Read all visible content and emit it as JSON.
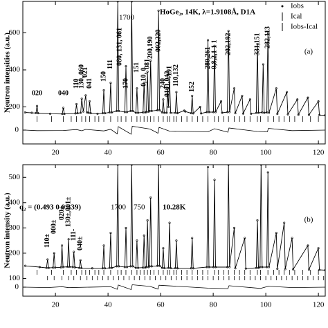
{
  "chart_data": [
    {
      "type": "line",
      "title": "HoGe₃, 14K, λ=1.9108Å, D1A",
      "ylabel": "Neutron intensities (a.u.)",
      "xlim": [
        7.6,
        122.6
      ],
      "xticks": [
        20,
        40,
        60,
        80,
        100,
        120
      ],
      "ylim": [
        0,
        770
      ],
      "yticks": [
        200,
        400,
        600
      ],
      "legend": [
        "Iobs",
        "Ical",
        "Iobs-Ical"
      ],
      "series": [
        {
          "name": "Iobs",
          "color": "#000000",
          "x": [
            8.5,
            11,
            12.6,
            13,
            13.4,
            18,
            22.6,
            23,
            23.4,
            27.6,
            28,
            28.4,
            29.6,
            30,
            30.6,
            31.5,
            32,
            32.6,
            33,
            33.4,
            36,
            38,
            38.4,
            38.8,
            40.6,
            41,
            41.4,
            43.3,
            43.7,
            44.1,
            46.4,
            46.8,
            47.2,
            48.6,
            49,
            49.4,
            50.6,
            51,
            51.4,
            53.3,
            53.7,
            54.1,
            54.6,
            55,
            55.4,
            55.8,
            56.2,
            56.6,
            58.8,
            59.2,
            59.6,
            60.6,
            61,
            61.4,
            62.3,
            62.6,
            63,
            63.4,
            63.8,
            65.6,
            66,
            66.4,
            69,
            69.4,
            71.6,
            72,
            72.4,
            75,
            75.4,
            77.6,
            78,
            78.4,
            80.1,
            80.5,
            80.9,
            83,
            83.4,
            85.4,
            85.8,
            86.2,
            88,
            88.4,
            91,
            91.4,
            94,
            94.4,
            96.4,
            96.8,
            97.2,
            98.6,
            99,
            99.4,
            100.4,
            100.8,
            101.2,
            104,
            104.4,
            108,
            108.4,
            112,
            112.4,
            116,
            116.4,
            120,
            120.4,
            122.6
          ],
          "values": [
            170,
            168,
            167,
            205,
            166,
            163,
            162,
            195,
            162,
            165,
            215,
            166,
            168,
            245,
            175,
            262,
            170,
            168,
            230,
            166,
            163,
            166,
            290,
            166,
            170,
            330,
            170,
            178,
            770,
            178,
            172,
            420,
            172,
            178,
            770,
            178,
            168,
            300,
            168,
            170,
            330,
            170,
            172,
            390,
            174,
            178,
            450,
            178,
            182,
            720,
            182,
            170,
            240,
            168,
            168,
            300,
            200,
            360,
            168,
            168,
            280,
            166,
            180,
            175,
            166,
            260,
            165,
            200,
            165,
            172,
            560,
            172,
            172,
            530,
            172,
            230,
            168,
            172,
            610,
            172,
            300,
            166,
            260,
            164,
            240,
            163,
            168,
            540,
            168,
            170,
            430,
            168,
            170,
            600,
            168,
            300,
            162,
            280,
            160,
            240,
            158,
            250,
            157,
            230,
            156,
            155
          ]
        }
      ],
      "residual": {
        "ylim": [
          -100,
          100
        ],
        "yticks": [
          0
        ],
        "x": [
          8.5,
          13,
          23,
          28,
          30,
          31.5,
          38.4,
          41,
          43.5,
          43.9,
          48.8,
          49.2,
          56,
          59,
          59.4,
          63.4,
          78,
          80.5,
          85.6,
          86,
          96.8,
          100.6,
          101,
          110,
          122.6
        ],
        "values": [
          0,
          -8,
          -6,
          8,
          -10,
          10,
          -12,
          12,
          -55,
          50,
          -60,
          55,
          15,
          -45,
          40,
          -15,
          -25,
          20,
          -30,
          30,
          -20,
          -25,
          25,
          -8,
          0
        ]
      },
      "reflections": [
        [
          13,
          18.5,
          23,
          26,
          28,
          30,
          31.5,
          33,
          35,
          36.5,
          38.4,
          41,
          43.7,
          45,
          46.8,
          49,
          51,
          52.2,
          53.7,
          55,
          56.2,
          57.5,
          59.2,
          61,
          62.6,
          63.4,
          65,
          66,
          68,
          70,
          72,
          74,
          76,
          78,
          80.5,
          82,
          84,
          85.8,
          88,
          90,
          92,
          94,
          96.8,
          98,
          100.8,
          103,
          105,
          107,
          109,
          111,
          114,
          117,
          120
        ]
      ],
      "annotations": [
        {
          "text": "020",
          "x": 13
        },
        {
          "text": "040",
          "x": 23
        },
        {
          "text": "110",
          "x": 28
        },
        {
          "text": "130, 060",
          "x": 30
        },
        {
          "text": "021",
          "x": 31.5
        },
        {
          "text": "041",
          "x": 33
        },
        {
          "text": "150",
          "x": 38.4
        },
        {
          "text": "111",
          "x": 41
        },
        {
          "text": "080, 131, 061",
          "x": 44.5
        },
        {
          "text": "170",
          "x": 46.8
        },
        {
          "text": "151",
          "x": 51
        },
        {
          "text": "0,10, 0",
          "x": 53.7
        },
        {
          "text": "081",
          "x": 55
        },
        {
          "text": "200,190",
          "x": 56.2
        },
        {
          "text": "002,220",
          "x": 59.2
        },
        {
          "text": "240",
          "x": 61
        },
        {
          "text": "0101,042",
          "x": 62.6
        },
        {
          "text": "191",
          "x": 63.4
        },
        {
          "text": "110,132",
          "x": 66
        },
        {
          "text": "152",
          "x": 72
        },
        {
          "text": "280,261",
          "x": 78
        },
        {
          "text": "0,8,2,1 1 1",
          "x": 80.5
        },
        {
          "text": "202,192",
          "x": 85.8
        },
        {
          "text": "331,151",
          "x": 96.8
        },
        {
          "text": "282,113",
          "x": 100.8
        }
      ],
      "labels": [
        "(a)",
        "1700"
      ]
    },
    {
      "type": "line",
      "ylabel": "Neutron intensity (a.u.)",
      "xlim": [
        7.6,
        122.6
      ],
      "xticks": [
        20,
        40,
        60,
        80,
        100,
        120
      ],
      "ylim": [
        30,
        550
      ],
      "yticks": [
        100,
        200,
        300,
        400,
        500
      ],
      "series": [
        {
          "name": "Iobs",
          "color": "#000000",
          "x": [
            8.5,
            14,
            16.6,
            17,
            17.4,
            19.1,
            19.5,
            19.9,
            22.1,
            22.5,
            22.9,
            24.6,
            25,
            25.4,
            26.6,
            27,
            27.4,
            29.1,
            29.5,
            29.9,
            34,
            38,
            38.4,
            38.8,
            40.6,
            41,
            41.4,
            43.3,
            43.7,
            44.1,
            46.4,
            46.8,
            47.2,
            48.6,
            49,
            49.4,
            50.6,
            51,
            51.4,
            53.3,
            53.7,
            54.1,
            54.6,
            55,
            55.4,
            55.8,
            56.2,
            56.6,
            58.8,
            59.2,
            59.6,
            60.6,
            61,
            61.4,
            63,
            63.4,
            63.8,
            65.6,
            66,
            66.4,
            71.6,
            72,
            72.4,
            77.6,
            78,
            78.4,
            80.1,
            80.5,
            80.9,
            85.4,
            85.8,
            86.2,
            88,
            88.4,
            92,
            92.4,
            96.4,
            96.8,
            97.2,
            97.8,
            98.2,
            98.6,
            100.4,
            100.8,
            101.2,
            104,
            104.4,
            107,
            107.4,
            110,
            110.4,
            116,
            116.4,
            120,
            120.4,
            122.6
          ],
          "values": [
            150,
            145,
            142,
            175,
            142,
            143,
            200,
            143,
            144,
            230,
            145,
            146,
            255,
            146,
            145,
            205,
            144,
            142,
            172,
            141,
            140,
            140,
            230,
            140,
            142,
            280,
            142,
            148,
            550,
            148,
            145,
            300,
            145,
            148,
            550,
            148,
            142,
            250,
            142,
            143,
            270,
            143,
            145,
            330,
            145,
            148,
            420,
            148,
            150,
            550,
            150,
            142,
            220,
            141,
            142,
            320,
            141,
            141,
            250,
            140,
            140,
            260,
            140,
            145,
            540,
            145,
            145,
            490,
            145,
            145,
            550,
            145,
            300,
            140,
            260,
            139,
            142,
            330,
            142,
            145,
            550,
            145,
            145,
            520,
            145,
            280,
            138,
            320,
            137,
            260,
            136,
            230,
            135,
            220,
            134,
            133
          ]
        }
      ],
      "residual": {
        "ylim": [
          -100,
          100
        ],
        "yticks": [
          0
        ],
        "x": [
          8.5,
          17,
          22.5,
          25,
          41,
          43.5,
          43.9,
          48.8,
          49.2,
          56,
          59,
          59.4,
          78,
          85.6,
          86,
          98,
          101,
          110,
          122.6
        ],
        "values": [
          0,
          -8,
          10,
          -10,
          10,
          -45,
          45,
          -50,
          50,
          15,
          -40,
          40,
          -20,
          -30,
          30,
          -25,
          20,
          -8,
          0
        ]
      },
      "reflections": [
        [
          13,
          18.5,
          23,
          26,
          28,
          30,
          31.5,
          33,
          35,
          36.5,
          38.4,
          41,
          43.7,
          45,
          46.8,
          49,
          51,
          52.2,
          53.7,
          55,
          56.2,
          57.5,
          59.2,
          61,
          62.6,
          63.4,
          65,
          66,
          68,
          70,
          72,
          74,
          76,
          78,
          80.5,
          82,
          84,
          85.8,
          88,
          90,
          92,
          94,
          96.8,
          98,
          100.8,
          103,
          105,
          107,
          109,
          111,
          114,
          117,
          120
        ],
        [
          17,
          19.5,
          22.5,
          25,
          27,
          29.5,
          32,
          34,
          36,
          38,
          40,
          42,
          44,
          46,
          48,
          50,
          52,
          54,
          56,
          58,
          60,
          62,
          64,
          66,
          68,
          70,
          72,
          74,
          76,
          78,
          80,
          82,
          84,
          86,
          88,
          90,
          92,
          94,
          96,
          98,
          100,
          102,
          104,
          106,
          108,
          110,
          112,
          114,
          116,
          118,
          120,
          122
        ]
      ],
      "annotations": [
        {
          "text": "110±",
          "x": 17
        },
        {
          "text": "000±",
          "x": 19.5
        },
        {
          "text": "020±",
          "x": 22.5
        },
        {
          "text": "130±,001±",
          "x": 25
        },
        {
          "text": "111-",
          "x": 27
        },
        {
          "text": "040±",
          "x": 29.5
        }
      ],
      "labels": [
        "q₂ = (0.493 0 0.339)",
        "1700",
        "750",
        "10.28K",
        "(b)"
      ]
    }
  ]
}
